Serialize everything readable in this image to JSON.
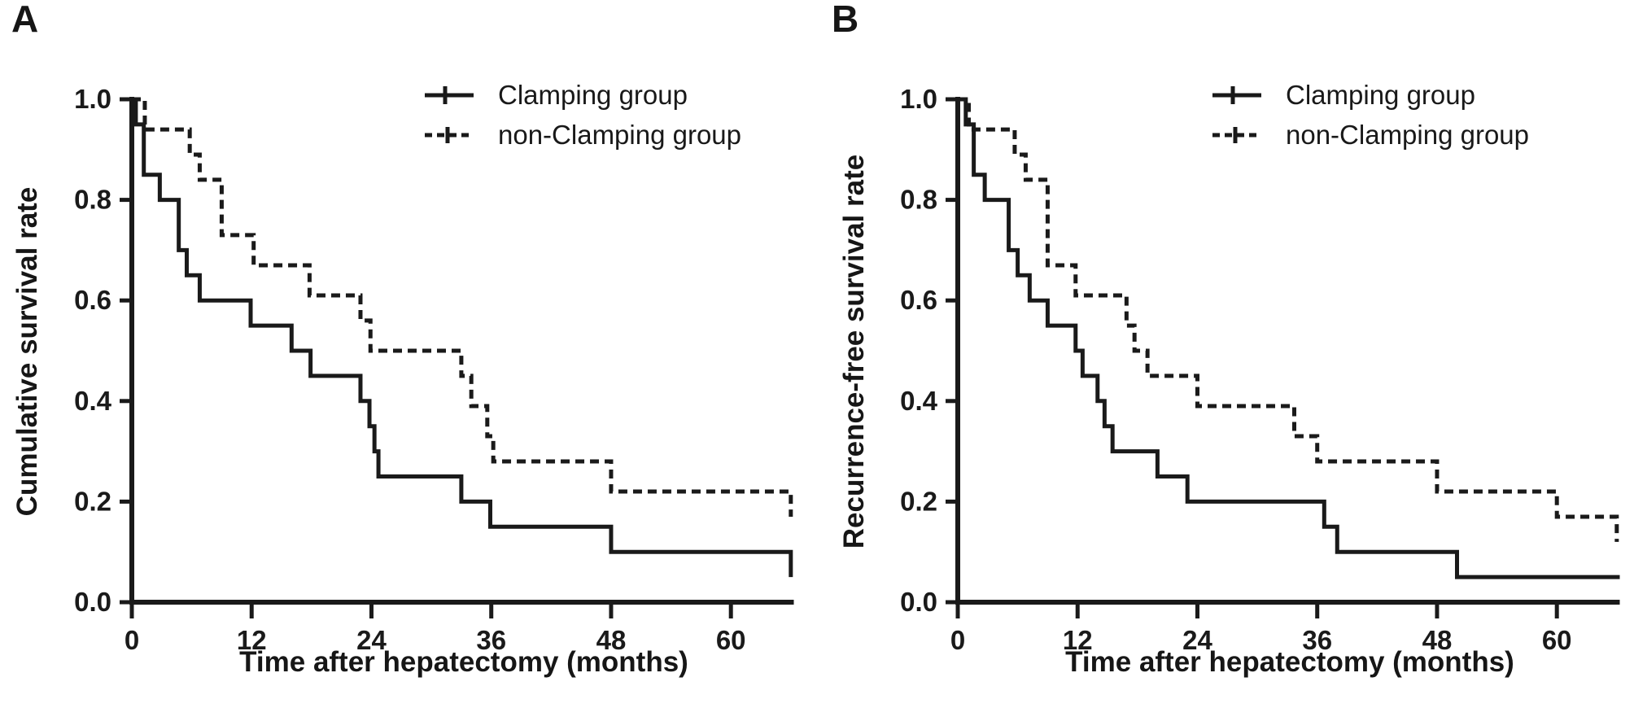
{
  "figure": {
    "background_color": "#ffffff",
    "line_color": "#1a1a1a",
    "panel_letters": [
      "A",
      "B"
    ]
  },
  "chart_data": [
    {
      "type": "line",
      "subtype": "kaplan_meier_step",
      "panel_letter": "A",
      "xlabel": "Time after hepatectomy (months)",
      "ylabel": "Cumulative survival rate",
      "xlim": [
        0,
        66.3
      ],
      "ylim": [
        0.0,
        1.0
      ],
      "xticks": [
        0,
        12,
        24,
        36,
        48,
        60
      ],
      "yticks": [
        "0.0",
        "0.2",
        "0.4",
        "0.6",
        "0.8",
        "1.0"
      ],
      "grid": "off",
      "legend_position": "top-right-inside",
      "series": [
        {
          "name": "Clamping group",
          "line_style": "solid",
          "color": "#1a1a1a",
          "start": 1.0,
          "steps": [
            [
              0.4,
              0.95
            ],
            [
              1.2,
              0.85
            ],
            [
              2.8,
              0.8
            ],
            [
              4.7,
              0.7
            ],
            [
              5.5,
              0.65
            ],
            [
              6.8,
              0.6
            ],
            [
              11.9,
              0.55
            ],
            [
              16.0,
              0.5
            ],
            [
              17.9,
              0.45
            ],
            [
              22.9,
              0.4
            ],
            [
              23.8,
              0.35
            ],
            [
              24.3,
              0.3
            ],
            [
              24.7,
              0.25
            ],
            [
              33.0,
              0.2
            ],
            [
              35.9,
              0.15
            ],
            [
              48.0,
              0.1
            ],
            [
              66.0,
              0.05
            ]
          ]
        },
        {
          "name": "non-Clamping group",
          "line_style": "dashed",
          "color": "#1a1a1a",
          "start": 1.0,
          "steps": [
            [
              1.3,
              0.94
            ],
            [
              5.8,
              0.89
            ],
            [
              6.8,
              0.84
            ],
            [
              9.0,
              0.73
            ],
            [
              12.2,
              0.67
            ],
            [
              17.8,
              0.61
            ],
            [
              22.9,
              0.56
            ],
            [
              23.9,
              0.5
            ],
            [
              33.0,
              0.45
            ],
            [
              34.0,
              0.39
            ],
            [
              35.6,
              0.33
            ],
            [
              36.2,
              0.28
            ],
            [
              48.0,
              0.22
            ],
            [
              66.0,
              0.17
            ]
          ]
        }
      ]
    },
    {
      "type": "line",
      "subtype": "kaplan_meier_step",
      "panel_letter": "B",
      "xlabel": "Time after hepatectomy (months)",
      "ylabel": "Recurrence-free survival rate",
      "xlim": [
        0,
        66.3
      ],
      "ylim": [
        0.0,
        1.0
      ],
      "xticks": [
        0,
        12,
        24,
        36,
        48,
        60
      ],
      "yticks": [
        "0.0",
        "0.2",
        "0.4",
        "0.6",
        "0.8",
        "1.0"
      ],
      "grid": "off",
      "legend_position": "top-right-inside",
      "series": [
        {
          "name": "Clamping group",
          "line_style": "solid",
          "color": "#1a1a1a",
          "start": 1.0,
          "steps": [
            [
              0.8,
              0.95
            ],
            [
              1.6,
              0.85
            ],
            [
              2.7,
              0.8
            ],
            [
              5.1,
              0.7
            ],
            [
              6.0,
              0.65
            ],
            [
              7.2,
              0.6
            ],
            [
              9.0,
              0.55
            ],
            [
              11.8,
              0.5
            ],
            [
              12.5,
              0.45
            ],
            [
              14.0,
              0.4
            ],
            [
              14.7,
              0.35
            ],
            [
              15.5,
              0.3
            ],
            [
              20.0,
              0.25
            ],
            [
              23.0,
              0.2
            ],
            [
              36.7,
              0.15
            ],
            [
              38.0,
              0.1
            ],
            [
              50.0,
              0.05
            ]
          ]
        },
        {
          "name": "non-Clamping group",
          "line_style": "dashed",
          "color": "#1a1a1a",
          "start": 1.0,
          "steps": [
            [
              1.1,
              0.94
            ],
            [
              5.7,
              0.89
            ],
            [
              6.8,
              0.84
            ],
            [
              9.0,
              0.67
            ],
            [
              11.8,
              0.61
            ],
            [
              16.9,
              0.55
            ],
            [
              17.7,
              0.5
            ],
            [
              19.0,
              0.45
            ],
            [
              24.0,
              0.39
            ],
            [
              33.7,
              0.33
            ],
            [
              36.0,
              0.28
            ],
            [
              48.0,
              0.22
            ],
            [
              60.0,
              0.17
            ],
            [
              66.0,
              0.12
            ]
          ]
        }
      ]
    }
  ]
}
